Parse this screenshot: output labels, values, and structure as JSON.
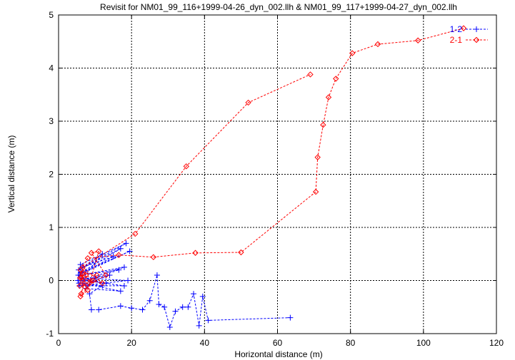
{
  "chart_data": {
    "type": "scatter",
    "title": "Revisit for NM01_99_116+1999-04-26_dyn_002.llh & NM01_99_117+1999-04-27_dyn_002.llh",
    "xlabel": "Horizontal distance (m)",
    "ylabel": "Vertical distance (m)",
    "xlim": [
      0,
      120
    ],
    "ylim": [
      -1,
      5
    ],
    "xticks": [
      "0",
      "20",
      "40",
      "60",
      "80",
      "100",
      "120"
    ],
    "yticks": [
      "-1",
      "0",
      "1",
      "2",
      "3",
      "4",
      "5"
    ],
    "grid": true,
    "legend_position": "top-right",
    "series": [
      {
        "name": "1-2",
        "color": "#0000ff",
        "marker": "plus",
        "points": [
          [
            5.3,
            0.0
          ],
          [
            6.0,
            0.3
          ],
          [
            18.5,
            0.7
          ],
          [
            5.5,
            0.2
          ],
          [
            17.0,
            0.6
          ],
          [
            6.2,
            0.15
          ],
          [
            19.5,
            0.55
          ],
          [
            5.4,
            0.1
          ],
          [
            15.0,
            0.45
          ],
          [
            6.5,
            0.25
          ],
          [
            12.0,
            0.5
          ],
          [
            5.6,
            -0.05
          ],
          [
            16.5,
            0.2
          ],
          [
            5.8,
            0.1
          ],
          [
            18.0,
            0.25
          ],
          [
            6.1,
            0.0
          ],
          [
            14.0,
            0.1
          ],
          [
            5.7,
            -0.1
          ],
          [
            19.0,
            0.0
          ],
          [
            6.4,
            0.05
          ],
          [
            13.0,
            -0.05
          ],
          [
            7.0,
            0.0
          ],
          [
            18.0,
            -0.1
          ],
          [
            8.0,
            -0.1
          ],
          [
            10.0,
            0.05
          ],
          [
            7.5,
            -0.15
          ],
          [
            17.0,
            -0.2
          ],
          [
            6.5,
            -0.05
          ],
          [
            12.0,
            -0.1
          ],
          [
            8.5,
            -0.25
          ],
          [
            9.0,
            -0.55
          ],
          [
            11.0,
            -0.55
          ],
          [
            17.0,
            -0.48
          ],
          [
            20.0,
            -0.52
          ],
          [
            23.0,
            -0.55
          ],
          [
            25.0,
            -0.38
          ],
          [
            27.0,
            0.1
          ],
          [
            27.5,
            -0.45
          ],
          [
            29.0,
            -0.5
          ],
          [
            30.5,
            -0.88
          ],
          [
            32.0,
            -0.58
          ],
          [
            34.0,
            -0.5
          ],
          [
            35.5,
            -0.5
          ],
          [
            37.0,
            -0.25
          ],
          [
            38.5,
            -0.85
          ],
          [
            39.5,
            -0.3
          ],
          [
            41.0,
            -0.75
          ],
          [
            63.5,
            -0.7
          ]
        ]
      },
      {
        "name": "2-1",
        "color": "#ff0000",
        "marker": "diamond",
        "points": [
          [
            111.0,
            4.75
          ],
          [
            98.5,
            4.52
          ],
          [
            87.5,
            4.45
          ],
          [
            80.5,
            4.28
          ],
          [
            76.0,
            3.8
          ],
          [
            74.0,
            3.45
          ],
          [
            72.5,
            2.93
          ],
          [
            71.0,
            2.32
          ],
          [
            70.5,
            1.67
          ],
          [
            50.0,
            0.53
          ],
          [
            37.5,
            0.52
          ],
          [
            26.0,
            0.44
          ],
          [
            16.5,
            0.48
          ],
          [
            8.0,
            0.42
          ],
          [
            6.0,
            0.2
          ],
          [
            6.3,
            0.05
          ],
          [
            5.8,
            -0.1
          ],
          [
            6.5,
            0.12
          ],
          [
            7.0,
            -0.05
          ],
          [
            6.2,
            -0.25
          ],
          [
            7.5,
            0.1
          ],
          [
            8.5,
            -0.05
          ],
          [
            9.5,
            0.0
          ],
          [
            6.8,
            0.15
          ],
          [
            10.5,
            0.1
          ],
          [
            6.0,
            -0.3
          ],
          [
            8.0,
            -0.18
          ],
          [
            11.0,
            0.55
          ],
          [
            9.0,
            0.52
          ],
          [
            13.0,
            0.1
          ],
          [
            7.2,
            -0.12
          ],
          [
            5.9,
            0.05
          ],
          [
            12.0,
            -0.05
          ],
          [
            6.6,
            0.25
          ],
          [
            21.0,
            0.88
          ],
          [
            35.0,
            2.15
          ],
          [
            52.0,
            3.35
          ],
          [
            69.0,
            3.88
          ]
        ]
      }
    ]
  }
}
